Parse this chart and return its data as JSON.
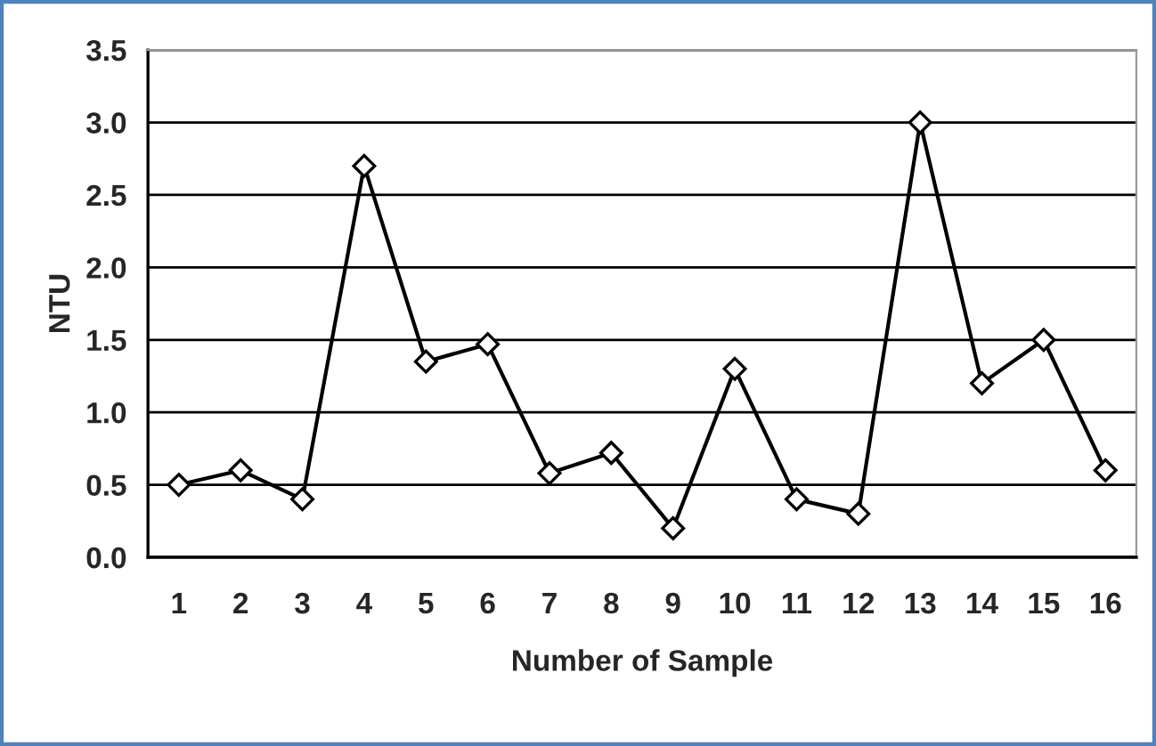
{
  "chart_data": {
    "type": "line",
    "xlabel": "Number of Sample",
    "ylabel": "NTU",
    "categories": [
      "1",
      "2",
      "3",
      "4",
      "5",
      "6",
      "7",
      "8",
      "9",
      "10",
      "11",
      "12",
      "13",
      "14",
      "15",
      "16"
    ],
    "series": [
      {
        "color": "#000000",
        "values": [
          0.5,
          0.6,
          0.4,
          2.7,
          1.35,
          1.47,
          0.58,
          0.72,
          0.2,
          1.3,
          0.4,
          0.3,
          3.0,
          1.2,
          1.5,
          0.6
        ]
      }
    ],
    "ylim": [
      0,
      3.5
    ],
    "yticks": [
      {
        "value": 0,
        "label": "0.0"
      },
      {
        "value": 0.5,
        "label": "0.5"
      },
      {
        "value": 1,
        "label": "1.0"
      },
      {
        "value": 1.5,
        "label": "1.5"
      },
      {
        "value": 2,
        "label": "2.0"
      },
      {
        "value": 2.5,
        "label": "2.5"
      },
      {
        "value": 3,
        "label": "3.0"
      },
      {
        "value": 3.5,
        "label": "3.5"
      }
    ],
    "grid": "y",
    "marker": "diamond",
    "line_style": "solid"
  }
}
